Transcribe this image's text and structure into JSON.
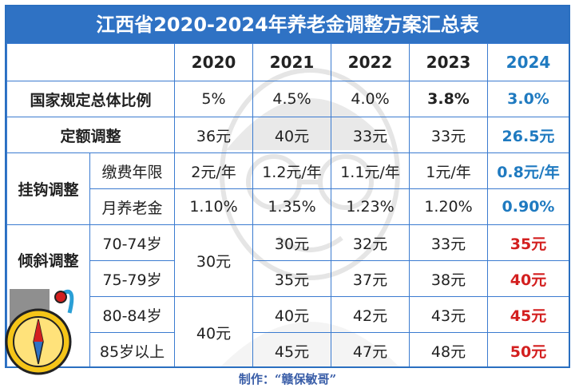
{
  "title": "江西省2020-2024年养老金调整方案汇总表",
  "header": [
    "",
    "",
    "2020",
    "2021",
    "2022",
    "2023",
    "2024"
  ],
  "rows": {
    "overall": {
      "label": "国家规定总体比例",
      "values": [
        "5%",
        "4.5%",
        "4.0%",
        "3.8%",
        "3.0%"
      ]
    },
    "fixed": {
      "label": "定额调整",
      "values": [
        "36元",
        "40元",
        "33元",
        "33元",
        "26.5元"
      ]
    },
    "linked_group": "挂钩调整",
    "linked_years": {
      "label": "缴费年限",
      "values": [
        "2元/年",
        "1.2元/年",
        "1.1元/年",
        "1元/年",
        "0.8元/年"
      ]
    },
    "linked_pension": {
      "label": "月养老金",
      "values": [
        "1.10%",
        "1.35%",
        "1.23%",
        "1.20%",
        "0.90%"
      ]
    },
    "tilt_group": "倾斜调整",
    "tilt_70_74": {
      "label": "70-74岁",
      "values": [
        "30元",
        "32元",
        "33元",
        "35元"
      ]
    },
    "tilt_75_79": {
      "label": "75-79岁",
      "values": [
        "35元",
        "37元",
        "38元",
        "40元"
      ]
    },
    "tilt_80_84": {
      "label": "80-84岁",
      "values": [
        "40元",
        "42元",
        "43元",
        "45元"
      ]
    },
    "tilt_85": {
      "label": "85岁以上",
      "values": [
        "45元",
        "47元",
        "48元",
        "50元"
      ]
    },
    "tilt_2020_a": "30元",
    "tilt_2020_b": "40元"
  },
  "footer": "制作：“赣保敏哥”",
  "colors": {
    "title_bg": "#2f72c4",
    "border": "#3b7bd0",
    "accent_blue": "#1f7ac0",
    "accent_red": "#d31f1f"
  },
  "icons": [
    "cartoon-face-watermark",
    "compass-badge-icon"
  ]
}
